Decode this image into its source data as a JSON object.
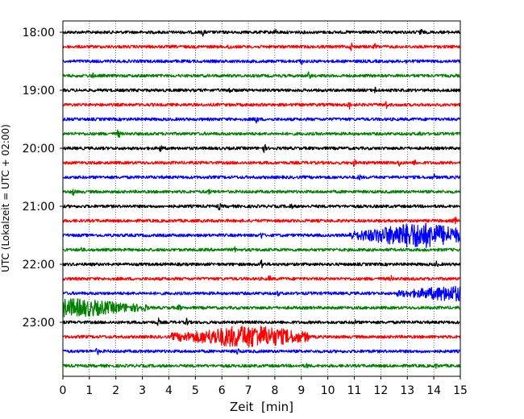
{
  "chart_data": {
    "type": "line",
    "title": "",
    "xlabel": "Zeit  [min]",
    "ylabel": "UTC (Lokalzeit = UTC + 02:00)",
    "xlim": [
      0,
      15
    ],
    "x_ticks": [
      "0",
      "1",
      "2",
      "3",
      "4",
      "5",
      "6",
      "7",
      "8",
      "9",
      "10",
      "11",
      "12",
      "13",
      "14",
      "15"
    ],
    "y_ticks": [
      "18:00",
      "19:00",
      "20:00",
      "21:00",
      "22:00",
      "23:00"
    ],
    "grid_x": true,
    "legend": "none",
    "trace_start": "18:00",
    "trace_interval_minutes": 15,
    "trace_colors": [
      "#000000",
      "#ff0000",
      "#0000ff",
      "#008000"
    ],
    "traces": [
      {
        "start": "18:00",
        "color": "#000000",
        "events": [
          {
            "t": 5.3,
            "amp": 0.7
          },
          {
            "t": 8.0,
            "amp": 0.6
          },
          {
            "t": 13.5,
            "amp": 0.9
          }
        ]
      },
      {
        "start": "18:15",
        "color": "#ff0000",
        "events": [
          {
            "t": 6.3,
            "amp": 0.8
          },
          {
            "t": 10.9,
            "amp": 0.7
          },
          {
            "t": 11.8,
            "amp": 0.5
          }
        ]
      },
      {
        "start": "18:30",
        "color": "#0000ff",
        "events": [
          {
            "t": 9.0,
            "amp": 0.5
          },
          {
            "t": 13.0,
            "amp": 0.5
          }
        ]
      },
      {
        "start": "18:45",
        "color": "#008000",
        "events": [
          {
            "t": 1.1,
            "amp": 0.7
          },
          {
            "t": 9.3,
            "amp": 0.8
          }
        ]
      },
      {
        "start": "19:00",
        "color": "#000000",
        "events": [
          {
            "t": 6.3,
            "amp": 0.8
          },
          {
            "t": 11.8,
            "amp": 0.5
          }
        ]
      },
      {
        "start": "19:15",
        "color": "#ff0000",
        "events": [
          {
            "t": 10.8,
            "amp": 0.8
          },
          {
            "t": 12.2,
            "amp": 0.7
          }
        ]
      },
      {
        "start": "19:30",
        "color": "#0000ff",
        "events": [
          {
            "t": 7.3,
            "amp": 1.0
          }
        ]
      },
      {
        "start": "19:45",
        "color": "#008000",
        "events": [
          {
            "t": 2.1,
            "amp": 0.9
          },
          {
            "t": 13.5,
            "amp": 0.5
          }
        ]
      },
      {
        "start": "20:00",
        "color": "#000000",
        "events": [
          {
            "t": 3.7,
            "amp": 0.8
          },
          {
            "t": 7.6,
            "amp": 0.9
          }
        ]
      },
      {
        "start": "20:15",
        "color": "#ff0000",
        "events": [
          {
            "t": 11.0,
            "amp": 0.6
          },
          {
            "t": 12.7,
            "amp": 0.7
          },
          {
            "t": 13.3,
            "amp": 0.5
          }
        ]
      },
      {
        "start": "20:30",
        "color": "#0000ff",
        "events": [
          {
            "t": 11.2,
            "amp": 0.6
          },
          {
            "t": 14.0,
            "amp": 0.5
          }
        ]
      },
      {
        "start": "20:45",
        "color": "#008000",
        "events": [
          {
            "t": 0.4,
            "amp": 0.6
          },
          {
            "t": 5.5,
            "amp": 0.5
          }
        ]
      },
      {
        "start": "21:00",
        "color": "#000000",
        "events": [
          {
            "t": 5.9,
            "amp": 0.6
          },
          {
            "t": 8.6,
            "amp": 0.5
          }
        ]
      },
      {
        "start": "21:15",
        "color": "#ff0000",
        "events": [
          {
            "t": 14.8,
            "amp": 0.8
          }
        ]
      },
      {
        "start": "21:30",
        "color": "#0000ff",
        "events": [
          {
            "t": 7.5,
            "amp": 0.6
          }
        ],
        "bursts": [
          {
            "from": 10.8,
            "to": 15.0,
            "peak": 13.4,
            "amp": 2.3
          }
        ]
      },
      {
        "start": "21:45",
        "color": "#008000",
        "events": [
          {
            "t": 0.7,
            "amp": 0.5
          },
          {
            "t": 6.5,
            "amp": 0.4
          }
        ]
      },
      {
        "start": "22:00",
        "color": "#000000",
        "events": [
          {
            "t": 7.5,
            "amp": 1.1
          },
          {
            "t": 14.1,
            "amp": 0.5
          }
        ]
      },
      {
        "start": "22:15",
        "color": "#ff0000",
        "events": [
          {
            "t": 7.8,
            "amp": 0.5
          },
          {
            "t": 12.4,
            "amp": 0.5
          }
        ]
      },
      {
        "start": "22:30",
        "color": "#0000ff",
        "events": [
          {
            "t": 8.1,
            "amp": 0.5
          }
        ],
        "bursts": [
          {
            "from": 12.6,
            "to": 15.0,
            "peak": 14.8,
            "amp": 1.3
          }
        ]
      },
      {
        "start": "22:45",
        "color": "#008000",
        "events": [
          {
            "t": 4.4,
            "amp": 0.6
          }
        ],
        "bursts": [
          {
            "from": 0.0,
            "to": 3.2,
            "peak": 0.3,
            "amp": 1.6
          }
        ]
      },
      {
        "start": "23:00",
        "color": "#000000",
        "events": [
          {
            "t": 3.6,
            "amp": 0.7
          },
          {
            "t": 4.7,
            "amp": 0.9
          },
          {
            "t": 11.0,
            "amp": 0.5
          }
        ]
      },
      {
        "start": "23:15",
        "color": "#ff0000",
        "events": [],
        "bursts": [
          {
            "from": 4.1,
            "to": 9.3,
            "peak": 7.0,
            "amp": 2.0
          }
        ]
      },
      {
        "start": "23:30",
        "color": "#0000ff",
        "events": [
          {
            "t": 1.3,
            "amp": 0.6
          },
          {
            "t": 6.6,
            "amp": 0.6
          }
        ]
      },
      {
        "start": "23:45",
        "color": "#008000",
        "events": [
          {
            "t": 9.2,
            "amp": 0.4
          },
          {
            "t": 14.1,
            "amp": 0.4
          }
        ]
      }
    ]
  }
}
